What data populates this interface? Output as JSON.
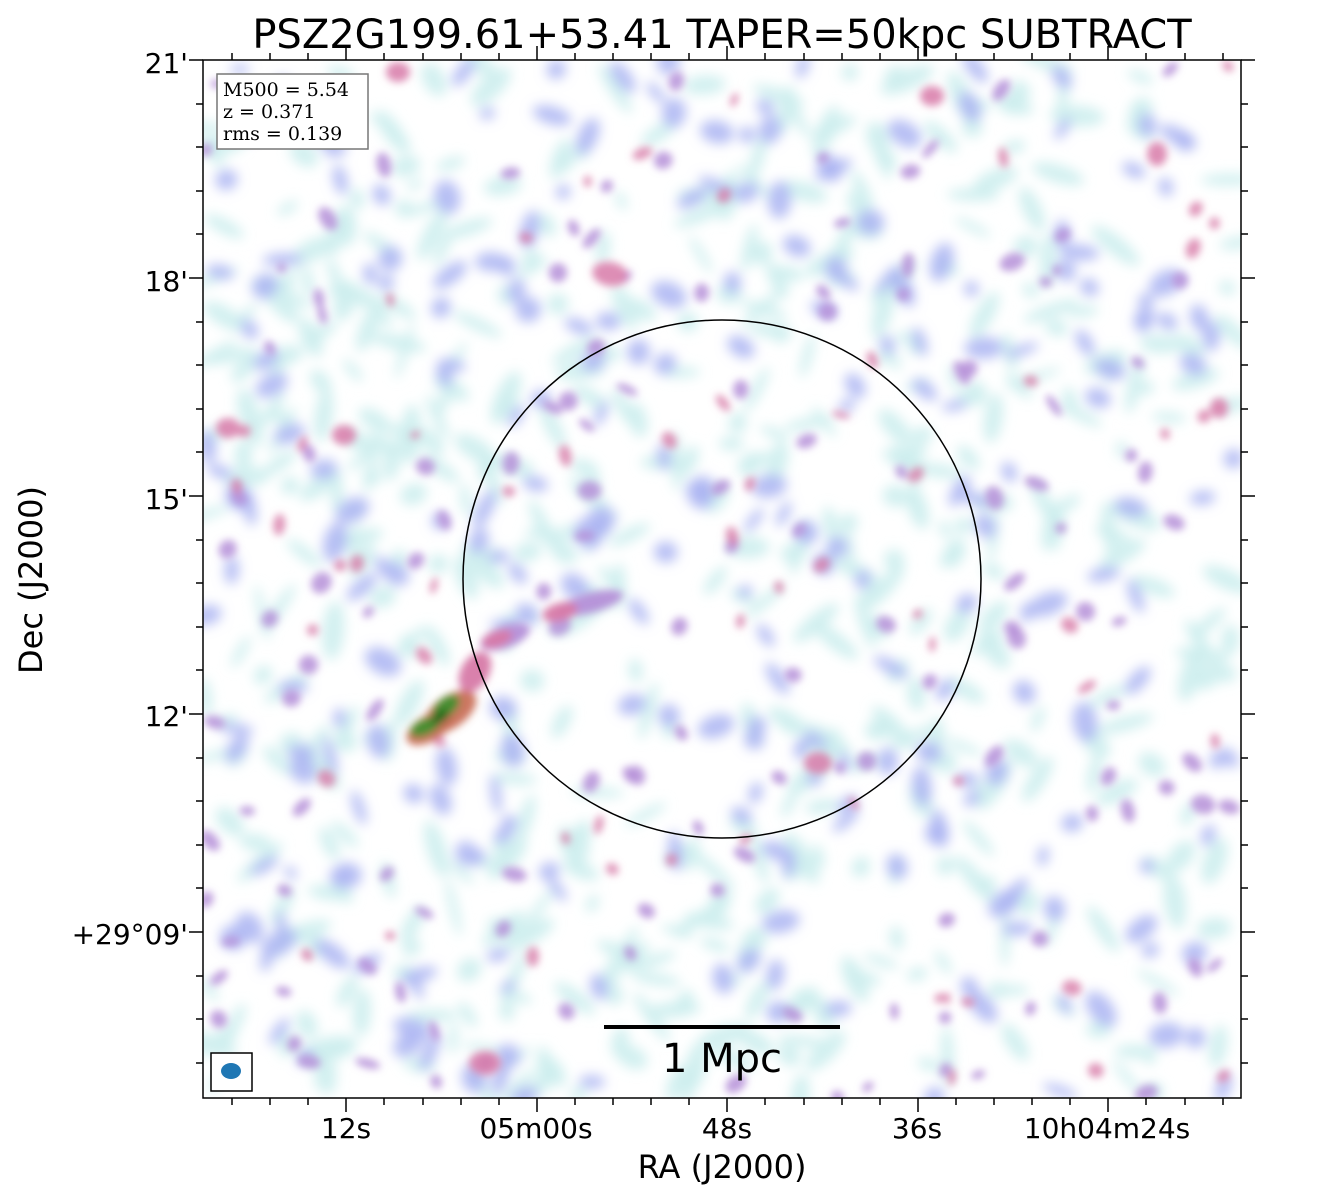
{
  "chart_data": {
    "type": "image",
    "title": "PSZ2G199.61+53.41 TAPER=50kpc SUBTRACT",
    "xlabel": "RA (J2000)",
    "ylabel": "Dec (J2000)",
    "x_ticks": [
      "12s",
      "05m00s",
      "48s",
      "36s",
      "10h04m24s"
    ],
    "y_ticks": [
      "21'",
      "18'",
      "15'",
      "12'",
      "+29°09'"
    ],
    "info": {
      "m500": "M500 = 5.54",
      "z": "z = 0.371",
      "rms": "rms = 0.139"
    },
    "scale_bar": {
      "label": "1 Mpc"
    },
    "colormap": [
      "#cdeeee",
      "#aab4f2",
      "#b58fd8",
      "#d77aa8",
      "#c9705a",
      "#3f8f2e",
      "#1f6b1f"
    ],
    "beam_color": "#1f77b4",
    "grid": false
  }
}
